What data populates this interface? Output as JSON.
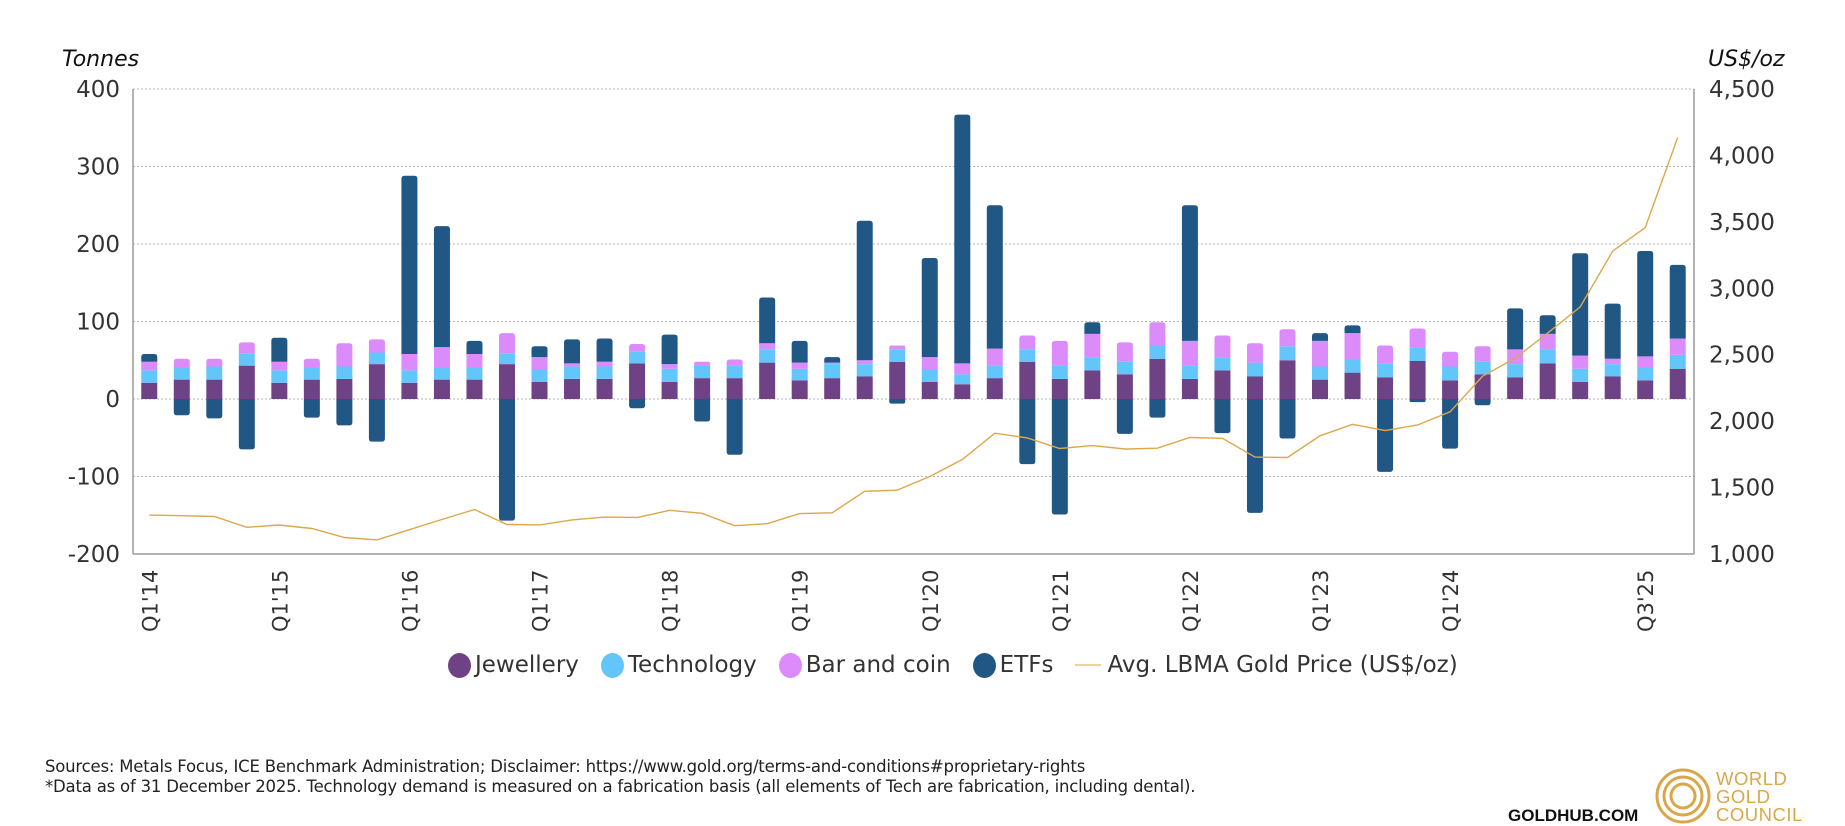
{
  "chart_data": {
    "type": "bar",
    "stacked": true,
    "title": "",
    "ylabel": "Tonnes",
    "y2label": "US$/oz",
    "ylim": [
      -200,
      400
    ],
    "y2lim": [
      1000,
      4500
    ],
    "yticks": [
      "400",
      "300",
      "200",
      "100",
      "0",
      "-100",
      "-200"
    ],
    "y2ticks": [
      "4,500",
      "4,000",
      "3,500",
      "3,000",
      "2,500",
      "2,000",
      "1,500",
      "1,000"
    ],
    "grid": true,
    "legend_position": "bottom-center",
    "x_tick_labels": [
      {
        "index": 0,
        "label": "Q1'14"
      },
      {
        "index": 4,
        "label": "Q1'15"
      },
      {
        "index": 8,
        "label": "Q1'16"
      },
      {
        "index": 12,
        "label": "Q1'17"
      },
      {
        "index": 16,
        "label": "Q1'18"
      },
      {
        "index": 20,
        "label": "Q1'19"
      },
      {
        "index": 24,
        "label": "Q1'20"
      },
      {
        "index": 28,
        "label": "Q1'21"
      },
      {
        "index": 32,
        "label": "Q1'22"
      },
      {
        "index": 36,
        "label": "Q1'23"
      },
      {
        "index": 40,
        "label": "Q1'24"
      },
      {
        "index": 46,
        "label": "Q3'25"
      }
    ],
    "categories": [
      "Q1'14",
      "Q2'14",
      "Q3'14",
      "Q4'14",
      "Q1'15",
      "Q2'15",
      "Q3'15",
      "Q4'15",
      "Q1'16",
      "Q2'16",
      "Q3'16",
      "Q4'16",
      "Q1'17",
      "Q2'17",
      "Q3'17",
      "Q4'17",
      "Q1'18",
      "Q2'18",
      "Q3'18",
      "Q4'18",
      "Q1'19",
      "Q2'19",
      "Q3'19",
      "Q4'19",
      "Q1'20",
      "Q2'20",
      "Q3'20",
      "Q4'20",
      "Q1'21",
      "Q2'21",
      "Q3'21",
      "Q4'21",
      "Q1'22",
      "Q2'22",
      "Q3'22",
      "Q4'22",
      "Q1'23",
      "Q2'23",
      "Q3'23",
      "Q4'23",
      "Q1'24",
      "Q2'24",
      "Q3'24",
      "Q4'24",
      "Q1'25",
      "Q2'25",
      "Q3'25",
      "Q4'25"
    ],
    "series": [
      {
        "name": "Jewellery",
        "color": "#6f4185",
        "axis": "left",
        "values": [
          21,
          25,
          25,
          43,
          21,
          25,
          26,
          45,
          21,
          25,
          25,
          45,
          22,
          26,
          26,
          46,
          22,
          27,
          27,
          47,
          24,
          27,
          29,
          48,
          22,
          19,
          27,
          48,
          26,
          37,
          32,
          52,
          26,
          37,
          29,
          50,
          25,
          34,
          28,
          49,
          24,
          32,
          28,
          46,
          22,
          29,
          24,
          39
        ]
      },
      {
        "name": "Technology",
        "color": "#62c6fa",
        "axis": "left",
        "values": [
          16,
          15,
          17,
          16,
          16,
          15,
          16,
          15,
          16,
          15,
          15,
          14,
          16,
          16,
          16,
          15,
          17,
          16,
          16,
          17,
          15,
          18,
          16,
          16,
          16,
          13,
          16,
          16,
          17,
          17,
          16,
          17,
          17,
          17,
          18,
          18,
          17,
          17,
          18,
          18,
          18,
          16,
          17,
          18,
          17,
          16,
          16,
          18
        ]
      },
      {
        "name": "Bar and coin",
        "color": "#dc8bfa",
        "axis": "left",
        "values": [
          11,
          12,
          10,
          14,
          11,
          12,
          30,
          17,
          21,
          27,
          18,
          26,
          16,
          4,
          6,
          10,
          6,
          5,
          8,
          8,
          8,
          2,
          5,
          5,
          16,
          14,
          22,
          18,
          32,
          30,
          25,
          30,
          32,
          28,
          25,
          22,
          33,
          34,
          23,
          24,
          19,
          20,
          19,
          20,
          17,
          7,
          15,
          21
        ]
      },
      {
        "name": "ETFs",
        "color": "#215785",
        "axis": "left",
        "values": [
          10,
          -21,
          -25,
          -65,
          31,
          -24,
          -34,
          -55,
          230,
          156,
          17,
          -157,
          14,
          31,
          30,
          -12,
          38,
          -29,
          -72,
          59,
          28,
          7,
          180,
          -6,
          128,
          321,
          185,
          -84,
          -149,
          15,
          -45,
          -24,
          175,
          -44,
          -147,
          -51,
          10,
          10,
          -94,
          -4,
          -64,
          -8,
          53,
          24,
          132,
          71,
          136,
          95
        ]
      },
      {
        "name": "Avg. LBMA Gold Price (US$/oz)",
        "color": "#dba84b",
        "axis": "right",
        "type": "line",
        "values": [
          1293,
          1288,
          1282,
          1201,
          1218,
          1192,
          1124,
          1106,
          1183,
          1260,
          1335,
          1222,
          1219,
          1257,
          1278,
          1275,
          1329,
          1306,
          1213,
          1228,
          1304,
          1310,
          1472,
          1481,
          1583,
          1711,
          1909,
          1874,
          1794,
          1816,
          1790,
          1796,
          1877,
          1871,
          1729,
          1726,
          1890,
          1976,
          1929,
          1971,
          2070,
          2338,
          2474,
          2663,
          2860,
          3280,
          3457,
          4135
        ]
      }
    ]
  },
  "legend": [
    {
      "label": "Jewellery",
      "color": "#6f4185",
      "marker": "circle"
    },
    {
      "label": "Technology",
      "color": "#62c6fa",
      "marker": "circle"
    },
    {
      "label": "Bar and coin",
      "color": "#dc8bfa",
      "marker": "circle"
    },
    {
      "label": "ETFs",
      "color": "#215785",
      "marker": "circle"
    },
    {
      "label": "Avg. LBMA Gold Price (US$/oz)",
      "color": "#ecd39e",
      "marker": "line"
    }
  ],
  "footer": {
    "sources": "Sources: Metals Focus, ICE Benchmark Administration; Disclaimer: https://www.gold.org/terms-and-conditions#proprietary-rights",
    "note": "*Data as of 31 December 2025. Technology demand is measured on a fabrication basis (all elements of Tech are fabrication, including dental)."
  },
  "branding": {
    "goldhub": "GOLDHUB.COM",
    "wgc_lines": [
      "WORLD",
      "GOLD",
      "COUNCIL"
    ],
    "wgc_color": "#d9a74a"
  }
}
